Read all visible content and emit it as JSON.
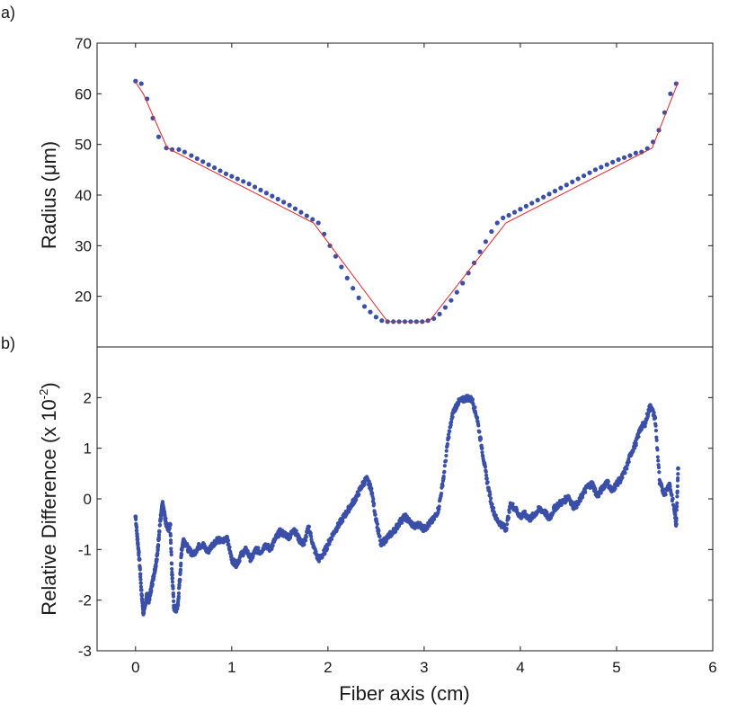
{
  "chart_data": [
    {
      "panel_label": "a)",
      "type": "scatter",
      "ylabel": "Radius (μm)",
      "xlim": [
        -0.4,
        6
      ],
      "ylim": [
        10,
        70
      ],
      "yticks": [
        "20",
        "30",
        "40",
        "50",
        "60",
        "70"
      ],
      "colors": {
        "points": "#3a4fa8",
        "fit": "#e8252a"
      },
      "series": [
        {
          "kind": "points",
          "x": [
            0.0,
            0.06,
            0.12,
            0.18,
            0.24,
            0.32,
            0.38,
            0.45,
            0.51,
            0.58,
            0.64,
            0.7,
            0.76,
            0.82,
            0.88,
            0.94,
            1.0,
            1.06,
            1.12,
            1.18,
            1.24,
            1.3,
            1.36,
            1.42,
            1.48,
            1.54,
            1.6,
            1.66,
            1.72,
            1.78,
            1.84,
            1.9,
            1.96,
            2.02,
            2.08,
            2.14,
            2.2,
            2.26,
            2.32,
            2.38,
            2.44,
            2.5,
            2.56,
            2.62,
            2.68,
            2.74,
            2.8,
            2.86,
            2.92,
            2.98,
            3.04,
            3.1,
            3.16,
            3.22,
            3.28,
            3.34,
            3.4,
            3.46,
            3.52,
            3.58,
            3.64,
            3.7,
            3.76,
            3.82,
            3.88,
            3.94,
            4.0,
            4.06,
            4.12,
            4.18,
            4.24,
            4.3,
            4.36,
            4.42,
            4.48,
            4.54,
            4.6,
            4.66,
            4.72,
            4.78,
            4.84,
            4.9,
            4.96,
            5.02,
            5.08,
            5.14,
            5.2,
            5.26,
            5.32,
            5.38,
            5.44,
            5.5,
            5.56,
            5.62
          ],
          "y": [
            62.5,
            62.0,
            59.0,
            55.2,
            51.5,
            49.3,
            49.0,
            49.0,
            48.5,
            47.8,
            47.2,
            46.6,
            46.0,
            45.4,
            44.8,
            44.2,
            43.7,
            43.2,
            42.7,
            42.2,
            41.6,
            41.0,
            40.4,
            39.8,
            39.2,
            38.6,
            38.0,
            37.3,
            36.6,
            35.9,
            35.2,
            34.5,
            32.3,
            30.0,
            27.9,
            25.8,
            23.6,
            21.6,
            19.7,
            18.0,
            16.9,
            15.9,
            15.2,
            15.0,
            15.0,
            15.0,
            15.0,
            15.0,
            15.0,
            15.0,
            15.2,
            15.6,
            16.5,
            17.8,
            19.2,
            20.8,
            22.6,
            24.6,
            26.6,
            28.8,
            30.8,
            32.8,
            34.5,
            35.5,
            36.0,
            36.6,
            37.2,
            37.8,
            38.4,
            39.0,
            39.6,
            40.2,
            40.8,
            41.4,
            42.0,
            42.6,
            43.2,
            43.8,
            44.4,
            45.0,
            45.5,
            46.0,
            46.5,
            47.0,
            47.4,
            47.8,
            48.3,
            48.5,
            49.2,
            50.5,
            52.8,
            56.3,
            60.0,
            62.0
          ]
        },
        {
          "kind": "fit",
          "x": [
            0.0,
            0.08,
            0.33,
            1.85,
            2.62,
            3.05,
            3.85,
            5.37,
            5.64
          ],
          "y": [
            62.3,
            60.0,
            49.3,
            34.5,
            15.0,
            15.0,
            34.5,
            49.3,
            62.3
          ]
        }
      ]
    },
    {
      "panel_label": "b)",
      "type": "scatter",
      "xlabel": "Fiber axis (cm)",
      "ylabel": "Relative Difference (x 10-2)",
      "ylabel_main": "Relative Difference (x 10",
      "ylabel_sup": "-2",
      "ylabel_close": ")",
      "xlim": [
        -0.4,
        6
      ],
      "ylim": [
        -3,
        3
      ],
      "xticks": [
        "0",
        "1",
        "2",
        "3",
        "4",
        "5",
        "6"
      ],
      "yticks": [
        "-3",
        "-2",
        "-1",
        "0",
        "1",
        "2"
      ],
      "colors": {
        "points": "#3a4fa8"
      },
      "series": [
        {
          "kind": "points",
          "x": [
            0.0,
            0.02,
            0.04,
            0.06,
            0.08,
            0.1,
            0.12,
            0.14,
            0.16,
            0.18,
            0.2,
            0.22,
            0.24,
            0.26,
            0.28,
            0.3,
            0.32,
            0.34,
            0.36,
            0.38,
            0.4,
            0.42,
            0.44,
            0.46,
            0.48,
            0.5,
            0.55,
            0.6,
            0.65,
            0.7,
            0.75,
            0.8,
            0.85,
            0.9,
            0.95,
            1.0,
            1.05,
            1.1,
            1.15,
            1.2,
            1.25,
            1.3,
            1.35,
            1.4,
            1.45,
            1.5,
            1.55,
            1.6,
            1.65,
            1.7,
            1.75,
            1.8,
            1.85,
            1.9,
            1.95,
            2.0,
            2.05,
            2.1,
            2.15,
            2.2,
            2.25,
            2.3,
            2.35,
            2.4,
            2.45,
            2.5,
            2.55,
            2.6,
            2.65,
            2.7,
            2.75,
            2.8,
            2.85,
            2.9,
            2.95,
            3.0,
            3.05,
            3.1,
            3.15,
            3.2,
            3.25,
            3.3,
            3.35,
            3.4,
            3.45,
            3.5,
            3.55,
            3.6,
            3.65,
            3.7,
            3.75,
            3.8,
            3.85,
            3.9,
            3.95,
            4.0,
            4.05,
            4.1,
            4.15,
            4.2,
            4.25,
            4.3,
            4.35,
            4.4,
            4.45,
            4.5,
            4.55,
            4.6,
            4.65,
            4.7,
            4.75,
            4.8,
            4.85,
            4.9,
            4.95,
            5.0,
            5.05,
            5.1,
            5.15,
            5.2,
            5.25,
            5.3,
            5.35,
            5.4,
            5.45,
            5.5,
            5.55,
            5.6,
            5.62,
            5.64
          ],
          "y": [
            -0.35,
            -0.8,
            -1.2,
            -1.8,
            -2.25,
            -2.1,
            -1.9,
            -2.0,
            -1.8,
            -1.6,
            -1.4,
            -1.2,
            -0.8,
            -0.4,
            -0.1,
            -0.3,
            -0.5,
            -0.6,
            -0.5,
            -1.5,
            -2.15,
            -2.2,
            -2.1,
            -1.6,
            -1.0,
            -0.8,
            -1.0,
            -1.1,
            -0.95,
            -0.9,
            -1.05,
            -0.9,
            -0.8,
            -0.85,
            -0.75,
            -1.2,
            -1.3,
            -1.1,
            -1.0,
            -1.2,
            -1.0,
            -1.05,
            -0.9,
            -1.0,
            -0.8,
            -0.65,
            -0.7,
            -0.75,
            -0.6,
            -0.8,
            -0.9,
            -0.55,
            -0.95,
            -1.2,
            -1.1,
            -0.9,
            -0.7,
            -0.55,
            -0.4,
            -0.25,
            -0.1,
            0.05,
            0.25,
            0.4,
            0.2,
            -0.4,
            -0.9,
            -0.8,
            -0.7,
            -0.6,
            -0.45,
            -0.35,
            -0.45,
            -0.55,
            -0.5,
            -0.6,
            -0.5,
            -0.4,
            -0.2,
            0.4,
            1.2,
            1.7,
            1.9,
            1.95,
            2.0,
            1.95,
            1.6,
            1.0,
            0.4,
            -0.1,
            -0.4,
            -0.5,
            -0.6,
            -0.1,
            -0.2,
            -0.35,
            -0.3,
            -0.4,
            -0.3,
            -0.2,
            -0.25,
            -0.4,
            -0.2,
            -0.1,
            -0.05,
            0.05,
            -0.15,
            -0.1,
            0.1,
            0.25,
            0.3,
            0.05,
            0.2,
            0.35,
            0.15,
            0.3,
            0.4,
            0.6,
            0.9,
            1.1,
            1.4,
            1.5,
            1.85,
            1.6,
            0.3,
            0.1,
            0.3,
            -0.2,
            -0.5,
            0.6
          ]
        }
      ]
    }
  ]
}
